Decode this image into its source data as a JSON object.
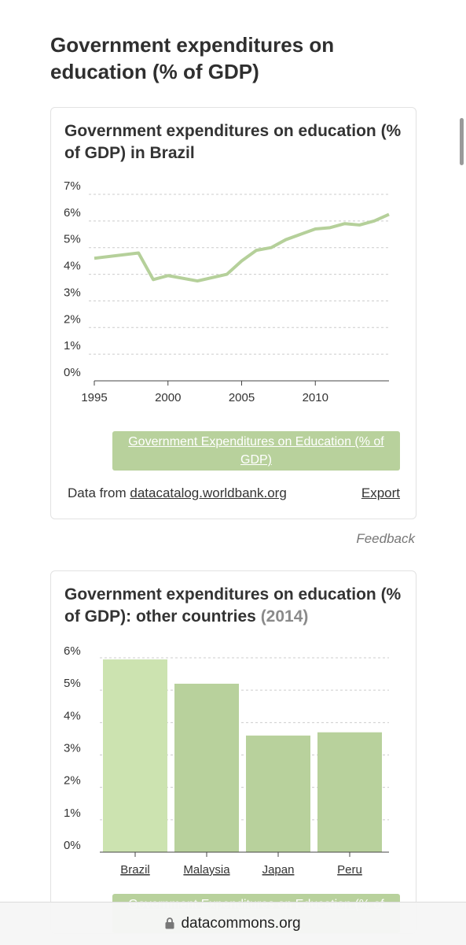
{
  "page_title": "Government expenditures on education (% of GDP)",
  "card1": {
    "title": "Government expenditures on education (% of GDP) in Brazil",
    "legend_label": "Government Expenditures on Education (% of GDP)",
    "source_prefix": "Data from ",
    "source_link": "datacatalog.worldbank.org",
    "export_label": "Export"
  },
  "feedback_label": "Feedback",
  "card2": {
    "title_main": "Government expenditures on education (% of GDP): other countries ",
    "title_year": "(2014)",
    "legend_label": "Government Expenditures on Education (% of GDP)"
  },
  "browser": {
    "url": "datacommons.org",
    "lock_icon": "lock-icon"
  },
  "colors": {
    "line": "#b5d09a",
    "bar": "#b8d19c",
    "bar_highlight": "#cce3b0",
    "grid": "#cccccc"
  },
  "chart_data": [
    {
      "type": "line",
      "title": "Government expenditures on education (% of GDP) in Brazil",
      "x_ticks": [
        "1995",
        "2000",
        "2005",
        "2010"
      ],
      "y_ticks": [
        "0%",
        "1%",
        "2%",
        "3%",
        "4%",
        "5%",
        "6%",
        "7%"
      ],
      "ylim": [
        0,
        7
      ],
      "xlim": [
        1995,
        2015
      ],
      "grid": true,
      "series": [
        {
          "name": "Government Expenditures on Education (% of GDP)",
          "x": [
            1995,
            1998,
            1999,
            2000,
            2002,
            2004,
            2005,
            2006,
            2007,
            2008,
            2009,
            2010,
            2011,
            2012,
            2013,
            2014,
            2015
          ],
          "y": [
            4.6,
            4.8,
            3.8,
            3.95,
            3.75,
            4.0,
            4.5,
            4.9,
            5.0,
            5.3,
            5.5,
            5.7,
            5.75,
            5.9,
            5.85,
            6.0,
            6.25
          ]
        }
      ]
    },
    {
      "type": "bar",
      "title": "Government expenditures on education (% of GDP): other countries (2014)",
      "categories": [
        "Brazil",
        "Malaysia",
        "Japan",
        "Peru"
      ],
      "y_ticks": [
        "0%",
        "1%",
        "2%",
        "3%",
        "4%",
        "5%",
        "6%"
      ],
      "ylim": [
        0,
        6
      ],
      "grid": true,
      "series": [
        {
          "name": "Government Expenditures on Education (% of GDP)",
          "values": [
            5.95,
            5.2,
            3.6,
            3.7
          ]
        }
      ]
    }
  ]
}
